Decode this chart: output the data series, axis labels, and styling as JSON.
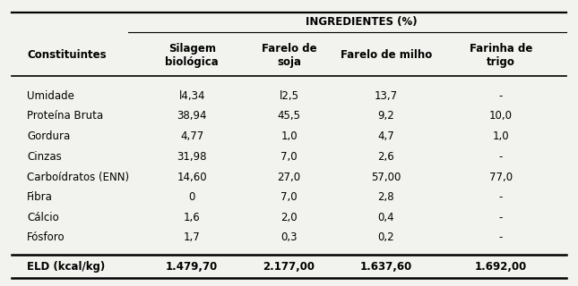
{
  "title_row": "INGREDIENTES (%)",
  "col_headers": [
    "Constituintes",
    "Silagem\nbiológica",
    "Farelo de\nsoja",
    "Farelo de milho",
    "Farinha de\ntrigo"
  ],
  "rows": [
    [
      "Umidade",
      "l4,34",
      "l2,5",
      "13,7",
      "-"
    ],
    [
      "Proteína Bruta",
      "38,94",
      "45,5",
      "9,2",
      "10,0"
    ],
    [
      "Gordura",
      "4,77",
      "1,0",
      "4,7",
      "1,0"
    ],
    [
      "Cinzas",
      "31,98",
      "7,0",
      "2,6",
      "-"
    ],
    [
      "Carboídratos (ENN)",
      "14,60",
      "27,0",
      "57,00",
      "77,0"
    ],
    [
      "Fibra",
      "0",
      "7,0",
      "2,8",
      "-"
    ],
    [
      "Cálcio",
      "1,6",
      "2,0",
      "0,4",
      "-"
    ],
    [
      "Fósforo",
      "1,7",
      "0,3",
      "0,2",
      "-"
    ]
  ],
  "last_row": [
    "ELD (kcal/kg)",
    "1.479,70",
    "2.177,00",
    "1.637,60",
    "1.692,00"
  ],
  "background_color": "#f2f2ee",
  "font_size": 8.5,
  "header_font_size": 8.5
}
